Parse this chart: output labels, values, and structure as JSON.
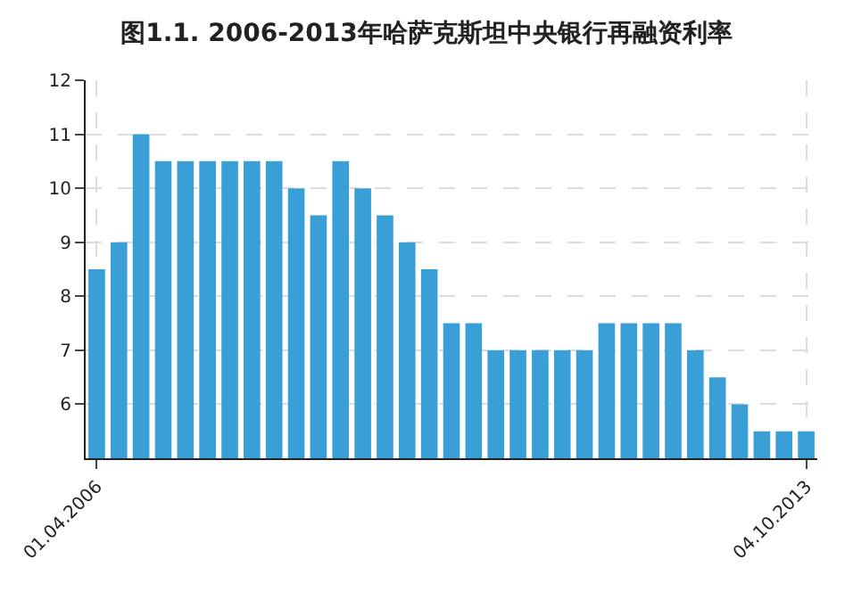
{
  "chart_data": {
    "type": "bar",
    "title": "图1.1. 2006-2013年哈萨克斯坦中央银行再融资利率",
    "categories": [
      "01.04.2006",
      null,
      null,
      null,
      null,
      null,
      null,
      null,
      null,
      null,
      null,
      null,
      null,
      null,
      null,
      null,
      null,
      null,
      null,
      null,
      null,
      null,
      null,
      null,
      null,
      null,
      null,
      null,
      null,
      null,
      null,
      null,
      "04.10.2013"
    ],
    "values": [
      8.5,
      9,
      11,
      10.5,
      10.5,
      10.5,
      10.5,
      10.5,
      10.5,
      10,
      9.5,
      10.5,
      10,
      9.5,
      9,
      8.5,
      7.5,
      7.5,
      7,
      7,
      7,
      7,
      7,
      7.5,
      7.5,
      7.5,
      7.5,
      7,
      6.5,
      6,
      5.5,
      5.5,
      5.5
    ],
    "color": "#3a9fd6",
    "ylim": [
      5,
      12
    ],
    "yticks": [
      6,
      7,
      8,
      9,
      10,
      11,
      12
    ],
    "grid": true
  }
}
